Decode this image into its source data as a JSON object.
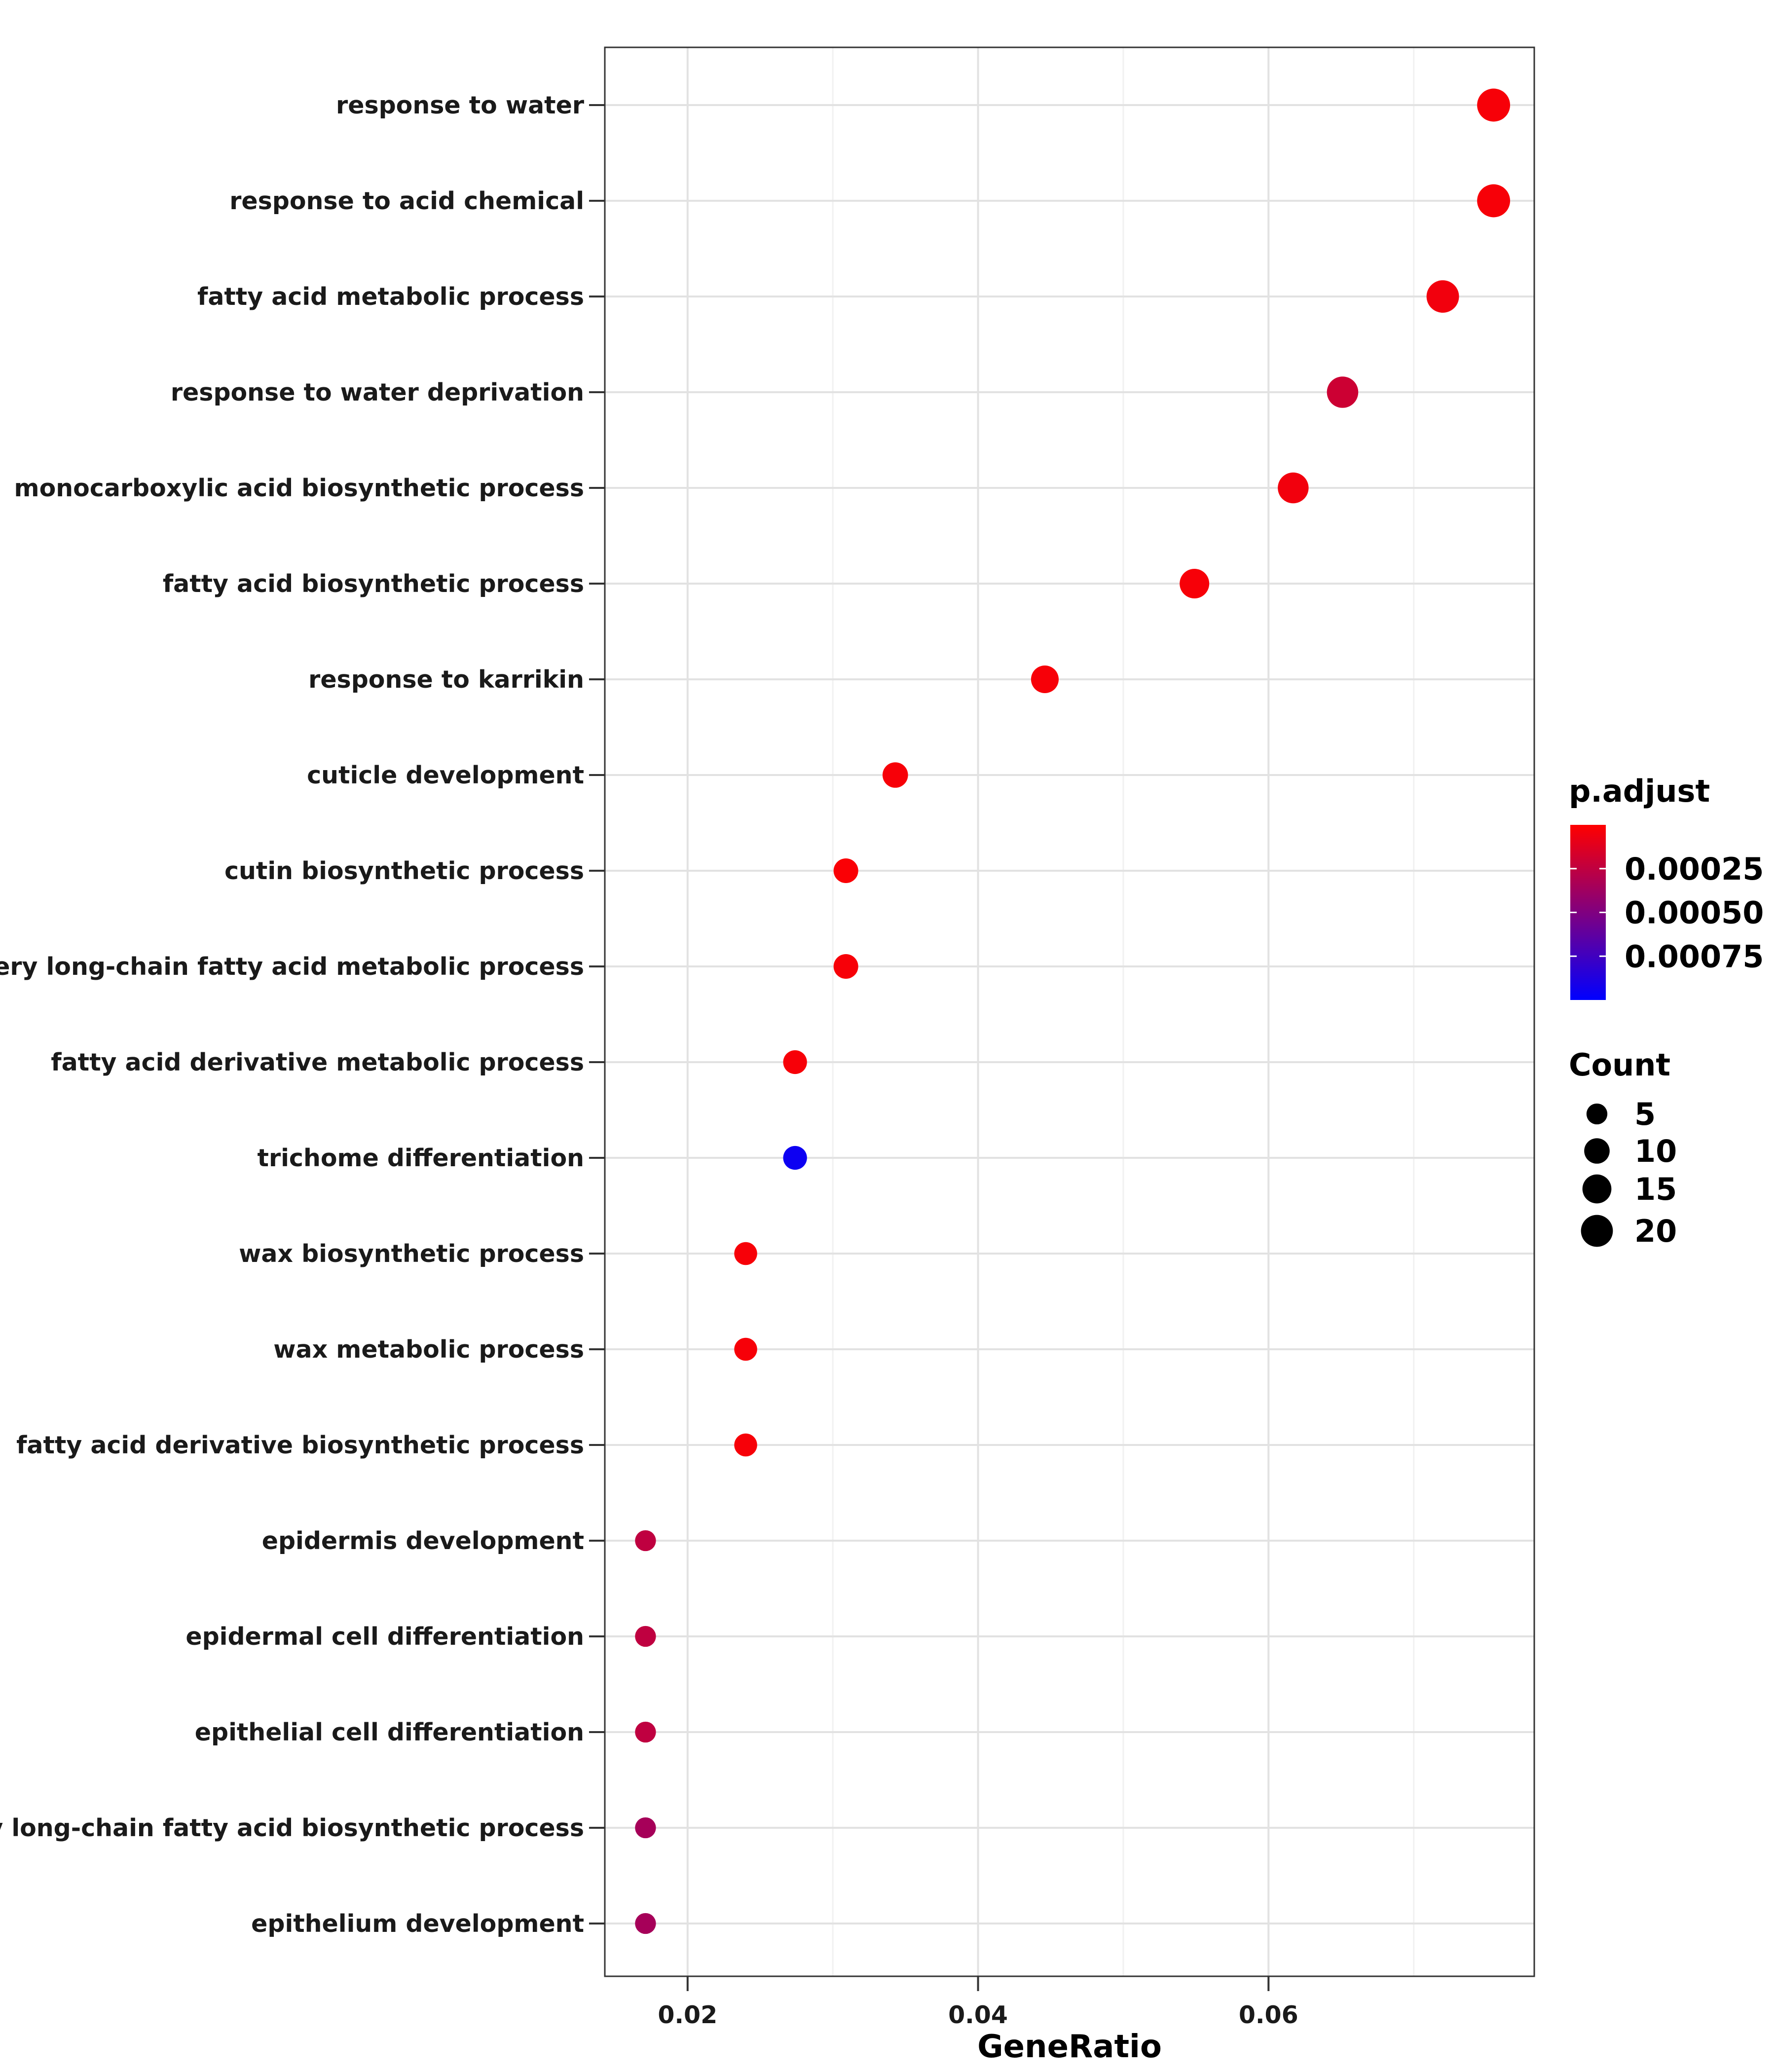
{
  "chart_data": {
    "type": "scatter",
    "xlabel": "GeneRatio",
    "ylabel": "",
    "xlim": [
      0.0143,
      0.0783
    ],
    "xticks": [
      0.02,
      0.04,
      0.06
    ],
    "xtick_labels": [
      "0.02",
      "0.04",
      "0.06"
    ],
    "grid": true,
    "legend_position": "right",
    "points": [
      {
        "term": "response to water",
        "x": 0.0755,
        "count": 22,
        "p_adjust": 3e-05
      },
      {
        "term": "response to acid chemical",
        "x": 0.0755,
        "count": 22,
        "p_adjust": 3e-05
      },
      {
        "term": "fatty acid metabolic process",
        "x": 0.072,
        "count": 21,
        "p_adjust": 5e-05
      },
      {
        "term": "response to water deprivation",
        "x": 0.0651,
        "count": 19,
        "p_adjust": 0.0002
      },
      {
        "term": "monocarboxylic acid biosynthetic process",
        "x": 0.0617,
        "count": 18,
        "p_adjust": 5e-05
      },
      {
        "term": "fatty acid biosynthetic process",
        "x": 0.0549,
        "count": 16,
        "p_adjust": 3e-05
      },
      {
        "term": "response to karrikin",
        "x": 0.0446,
        "count": 13,
        "p_adjust": 3e-05
      },
      {
        "term": "cuticle development",
        "x": 0.0343,
        "count": 10,
        "p_adjust": 3e-05
      },
      {
        "term": "cutin biosynthetic process",
        "x": 0.0309,
        "count": 9,
        "p_adjust": 2e-05
      },
      {
        "term": "very long-chain fatty acid metabolic process",
        "x": 0.0309,
        "count": 9,
        "p_adjust": 3e-05
      },
      {
        "term": "fatty acid derivative metabolic process",
        "x": 0.0274,
        "count": 8,
        "p_adjust": 3e-05
      },
      {
        "term": "trichome differentiation",
        "x": 0.0274,
        "count": 8,
        "p_adjust": 0.00095
      },
      {
        "term": "wax biosynthetic process",
        "x": 0.024,
        "count": 7,
        "p_adjust": 3e-05
      },
      {
        "term": "wax metabolic process",
        "x": 0.024,
        "count": 7,
        "p_adjust": 3e-05
      },
      {
        "term": "fatty acid derivative biosynthetic process",
        "x": 0.024,
        "count": 7,
        "p_adjust": 3e-05
      },
      {
        "term": "epidermis development",
        "x": 0.0171,
        "count": 5,
        "p_adjust": 0.00025
      },
      {
        "term": "epidermal cell differentiation",
        "x": 0.0171,
        "count": 5,
        "p_adjust": 0.00025
      },
      {
        "term": "epithelial cell differentiation",
        "x": 0.0171,
        "count": 5,
        "p_adjust": 0.00025
      },
      {
        "term": "very long-chain fatty acid biosynthetic process",
        "x": 0.0171,
        "count": 5,
        "p_adjust": 0.00035
      },
      {
        "term": "epithelium development",
        "x": 0.0171,
        "count": 5,
        "p_adjust": 0.00035
      }
    ],
    "color_legend": {
      "title": "p.adjust",
      "range": [
        0.0,
        0.001
      ],
      "ticks": [
        0.00025,
        0.0005,
        0.00075
      ],
      "tick_labels": [
        "0.00025",
        "0.00050",
        "0.00075"
      ],
      "low_color": "#ff0000",
      "high_color": "#0000ff"
    },
    "size_legend": {
      "title": "Count",
      "values": [
        5,
        10,
        15,
        20
      ],
      "labels": [
        "5",
        "10",
        "15",
        "20"
      ]
    }
  }
}
